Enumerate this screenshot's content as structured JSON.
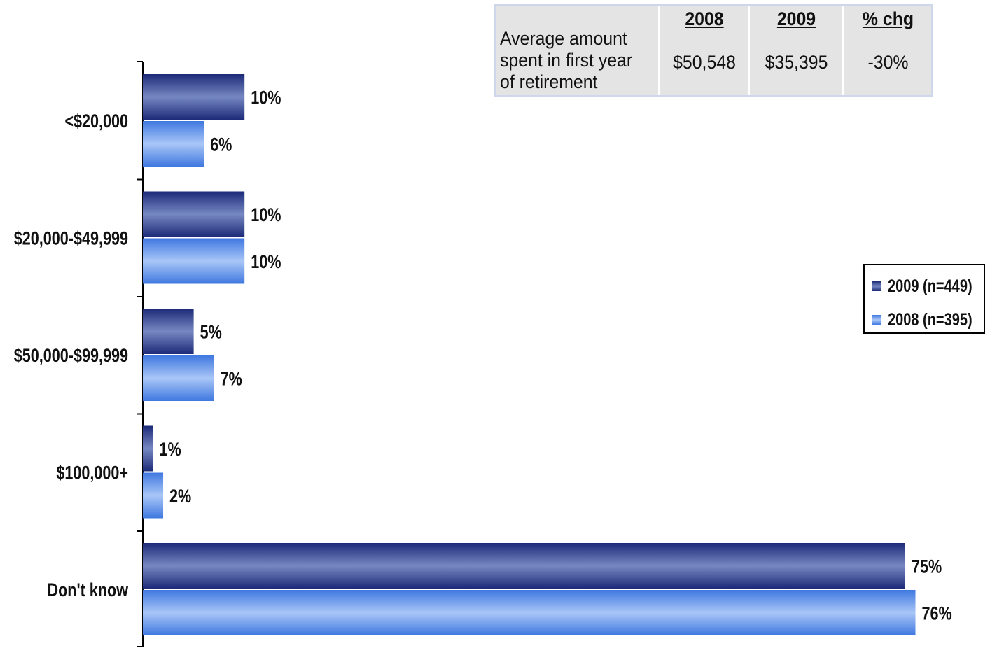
{
  "chart_data": {
    "type": "bar",
    "orientation": "horizontal",
    "categories": [
      "<$20,000",
      "$20,000-$49,999",
      "$50,000-$99,999",
      "$100,000+",
      "Don't know"
    ],
    "series": [
      {
        "name": "2009 (n=449)",
        "values": [
          10,
          10,
          5,
          1,
          75
        ],
        "labels": [
          "10%",
          "10%",
          "5%",
          "1%",
          "75%"
        ],
        "color": "#2b3f8f"
      },
      {
        "name": "2008 (n=395)",
        "values": [
          6,
          10,
          7,
          2,
          76
        ],
        "labels": [
          "6%",
          "10%",
          "7%",
          "2%",
          "76%"
        ],
        "color": "#5a8ee8"
      }
    ],
    "xlim": [
      0,
      100
    ],
    "grid": false,
    "legend_position": "right"
  },
  "summary_table": {
    "row_label": "Average amount spent in first year of retirement",
    "headers": [
      "2008",
      "2009",
      "% chg"
    ],
    "values": [
      "$50,548",
      "$35,395",
      "-30%"
    ]
  },
  "legend": {
    "items": [
      "2009 (n=449)",
      "2008 (n=395)"
    ]
  }
}
